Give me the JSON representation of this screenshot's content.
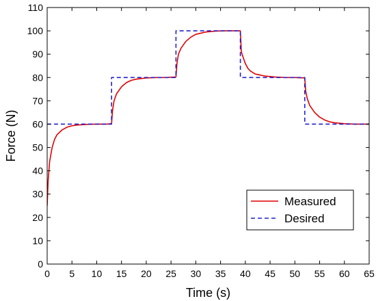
{
  "chart_data": {
    "type": "line",
    "title": "",
    "xlabel": "Time (s)",
    "ylabel": "Force (N)",
    "xlim": [
      0,
      65
    ],
    "ylim": [
      0,
      110
    ],
    "xticks": [
      0,
      5,
      10,
      15,
      20,
      25,
      30,
      35,
      40,
      45,
      50,
      55,
      60,
      65
    ],
    "yticks": [
      0,
      10,
      20,
      30,
      40,
      50,
      60,
      70,
      80,
      90,
      100,
      110
    ],
    "grid": false,
    "legend_position": "lower-right",
    "series": [
      {
        "name": "Measured",
        "color": "#e00000",
        "style": "solid",
        "x": [
          0,
          0.2,
          0.5,
          1,
          1.5,
          2,
          3,
          4,
          5,
          6,
          8,
          10,
          12,
          13,
          13.2,
          13.5,
          14,
          15,
          16,
          17,
          18,
          20,
          22,
          24,
          26,
          26.2,
          26.5,
          27,
          28,
          29,
          30,
          32,
          34,
          36,
          38,
          39,
          39.2,
          39.5,
          40,
          40.5,
          41,
          42,
          44,
          46,
          48,
          50,
          52,
          52.2,
          52.5,
          53,
          54,
          55,
          56,
          57,
          58,
          60,
          62,
          65
        ],
        "y": [
          25,
          36,
          44,
          50,
          53.5,
          55.5,
          57.5,
          58.7,
          59.3,
          59.6,
          59.9,
          60,
          60,
          60.2,
          66,
          70,
          73,
          76,
          77.8,
          78.8,
          79.3,
          79.8,
          80,
          80,
          80.2,
          86,
          90,
          92.5,
          95.5,
          97.3,
          98.5,
          99.5,
          99.9,
          100,
          100,
          100,
          91,
          89,
          86,
          84,
          82.8,
          81.5,
          80.6,
          80.2,
          80,
          80,
          79.8,
          74,
          71,
          68,
          65,
          63,
          61.8,
          61,
          60.6,
          60.2,
          60,
          60
        ]
      },
      {
        "name": "Desired",
        "color": "#1f1fd0",
        "style": "dashed",
        "x": [
          0,
          13,
          13,
          26,
          26,
          39,
          39,
          52,
          52,
          65
        ],
        "y": [
          60,
          60,
          80,
          80,
          100,
          100,
          80,
          80,
          60,
          60
        ]
      }
    ]
  }
}
